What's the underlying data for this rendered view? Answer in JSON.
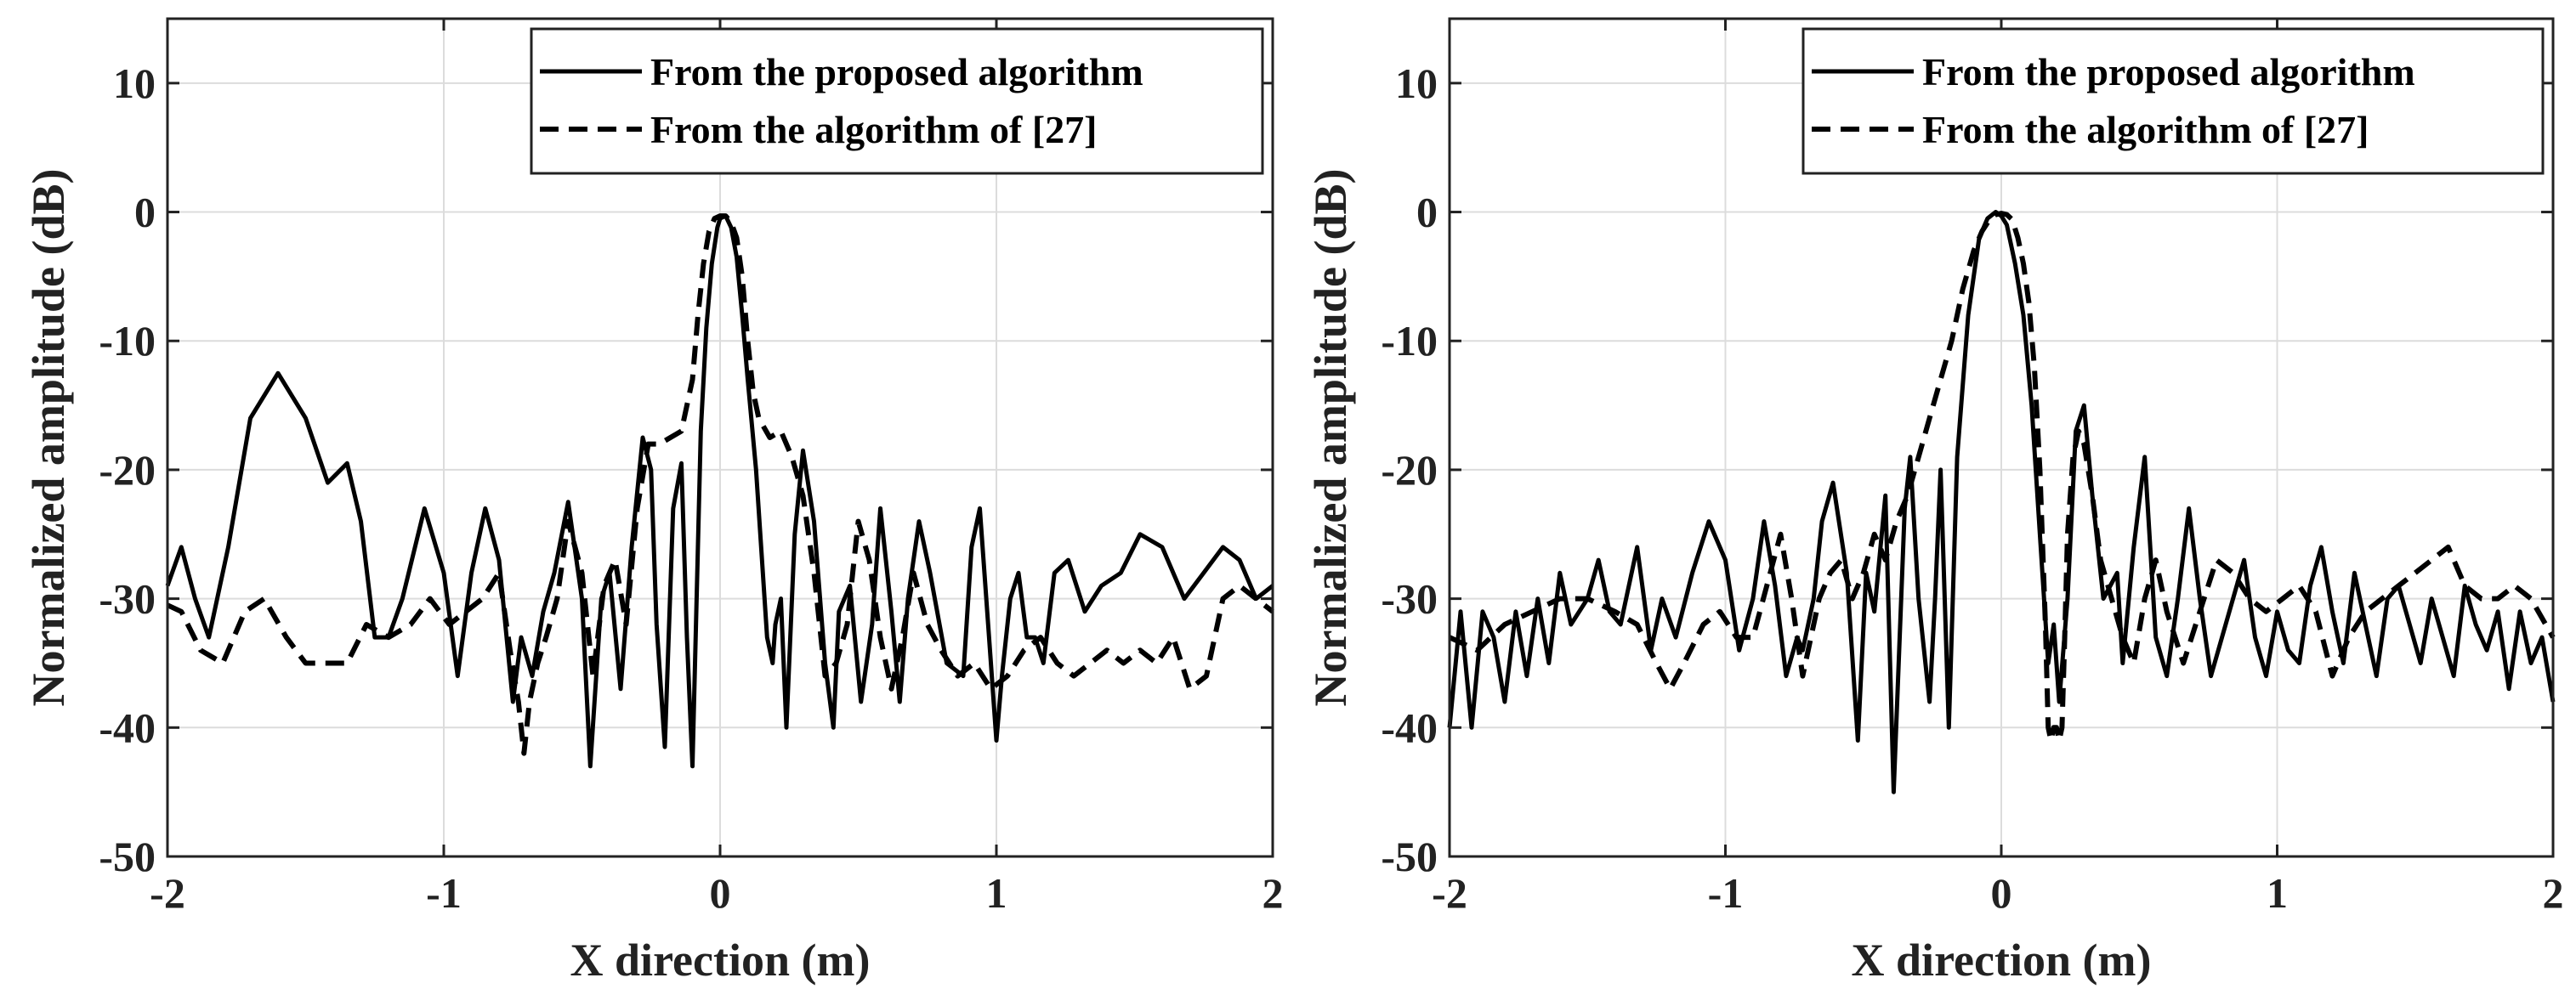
{
  "chart_data": [
    {
      "type": "line",
      "title": "",
      "xlabel": "X direction (m)",
      "ylabel": "Normalized amplitude (dB)",
      "xlim": [
        -2,
        2
      ],
      "ylim": [
        -50,
        15
      ],
      "xticks": [
        "-2",
        "-1",
        "0",
        "1",
        "2"
      ],
      "yticks": [
        "10",
        "0",
        "-10",
        "-20",
        "-30",
        "-40",
        "-50"
      ],
      "grid": true,
      "legend_position": "top-right",
      "series": [
        {
          "name": "From the proposed algorithm",
          "style": "solid",
          "x": [
            -2.0,
            -1.95,
            -1.9,
            -1.85,
            -1.78,
            -1.7,
            -1.6,
            -1.5,
            -1.42,
            -1.35,
            -1.3,
            -1.25,
            -1.2,
            -1.15,
            -1.07,
            -1.0,
            -0.95,
            -0.9,
            -0.85,
            -0.8,
            -0.75,
            -0.72,
            -0.68,
            -0.64,
            -0.6,
            -0.55,
            -0.5,
            -0.47,
            -0.43,
            -0.4,
            -0.36,
            -0.32,
            -0.28,
            -0.25,
            -0.23,
            -0.2,
            -0.17,
            -0.14,
            -0.12,
            -0.1,
            -0.07,
            -0.05,
            -0.03,
            -0.01,
            0.0,
            0.02,
            0.04,
            0.06,
            0.08,
            0.1,
            0.13,
            0.17,
            0.19,
            0.2,
            0.22,
            0.24,
            0.27,
            0.3,
            0.34,
            0.38,
            0.41,
            0.43,
            0.47,
            0.51,
            0.55,
            0.58,
            0.62,
            0.65,
            0.68,
            0.72,
            0.76,
            0.82,
            0.88,
            0.91,
            0.94,
            0.97,
            1.0,
            1.02,
            1.05,
            1.08,
            1.11,
            1.14,
            1.17,
            1.21,
            1.26,
            1.32,
            1.38,
            1.45,
            1.52,
            1.6,
            1.68,
            1.75,
            1.82,
            1.88,
            1.94,
            2.0
          ],
          "y": [
            -29,
            -26,
            -30,
            -33,
            -26,
            -16,
            -12.5,
            -16,
            -21,
            -19.5,
            -24,
            -33,
            -33,
            -30,
            -23,
            -28,
            -36,
            -28,
            -23,
            -27,
            -38,
            -33,
            -36,
            -31,
            -28,
            -22.5,
            -30,
            -43,
            -30,
            -28,
            -37,
            -26,
            -17.5,
            -20,
            -32,
            -41.5,
            -23,
            -19.5,
            -33,
            -43,
            -17,
            -9,
            -4,
            -1.2,
            -0.5,
            -0.3,
            -1.2,
            -3.5,
            -8,
            -13,
            -20,
            -33,
            -35,
            -32,
            -30,
            -40,
            -25,
            -18.5,
            -24,
            -35,
            -40,
            -31,
            -29,
            -38,
            -32,
            -23,
            -31,
            -38,
            -30,
            -24,
            -28,
            -35,
            -36,
            -26,
            -23,
            -32,
            -41,
            -36,
            -30,
            -28,
            -33,
            -33,
            -35,
            -28,
            -27,
            -31,
            -29,
            -28,
            -25,
            -26,
            -30,
            -28,
            -26,
            -27,
            -30,
            -29
          ]
        },
        {
          "name": "From the algorithm of [27]",
          "style": "dashed",
          "x": [
            -2.0,
            -1.95,
            -1.88,
            -1.8,
            -1.72,
            -1.65,
            -1.57,
            -1.5,
            -1.42,
            -1.35,
            -1.28,
            -1.2,
            -1.12,
            -1.05,
            -0.98,
            -0.92,
            -0.86,
            -0.8,
            -0.76,
            -0.73,
            -0.71,
            -0.69,
            -0.66,
            -0.63,
            -0.59,
            -0.55,
            -0.5,
            -0.46,
            -0.42,
            -0.38,
            -0.34,
            -0.3,
            -0.26,
            -0.22,
            -0.18,
            -0.14,
            -0.1,
            -0.08,
            -0.06,
            -0.04,
            -0.02,
            0.0,
            0.02,
            0.04,
            0.06,
            0.08,
            0.1,
            0.12,
            0.14,
            0.18,
            0.22,
            0.26,
            0.3,
            0.34,
            0.38,
            0.42,
            0.46,
            0.5,
            0.54,
            0.58,
            0.62,
            0.66,
            0.7,
            0.75,
            0.8,
            0.86,
            0.92,
            0.98,
            1.04,
            1.1,
            1.16,
            1.22,
            1.28,
            1.34,
            1.4,
            1.46,
            1.52,
            1.58,
            1.64,
            1.7,
            1.76,
            1.82,
            1.88,
            1.94,
            2.0
          ],
          "y": [
            -30.5,
            -31,
            -34,
            -35,
            -31,
            -30,
            -33,
            -35,
            -35,
            -35,
            -32,
            -33,
            -32,
            -30,
            -32,
            -31,
            -30,
            -28,
            -34,
            -38,
            -42,
            -38,
            -35,
            -33,
            -30,
            -24,
            -28,
            -36,
            -29,
            -27,
            -32,
            -23,
            -18,
            -18,
            -17.5,
            -17,
            -13,
            -8,
            -4,
            -1.5,
            -0.5,
            -0.3,
            -0.3,
            -0.8,
            -2,
            -5,
            -10,
            -14,
            -16,
            -17.5,
            -17,
            -19,
            -22,
            -28,
            -36,
            -35,
            -32,
            -24,
            -27,
            -33,
            -37,
            -33,
            -28,
            -32,
            -34,
            -36,
            -35,
            -37,
            -36,
            -34,
            -33,
            -35,
            -36,
            -35,
            -34,
            -35,
            -34,
            -35,
            -33,
            -37,
            -36,
            -30,
            -29,
            -30,
            -31
          ]
        }
      ]
    },
    {
      "type": "line",
      "title": "",
      "xlabel": "X direction (m)",
      "ylabel": "Normalized amplitude (dB)",
      "xlim": [
        -2,
        2
      ],
      "ylim": [
        -50,
        15
      ],
      "xticks": [
        "-2",
        "-1",
        "0",
        "1",
        "2"
      ],
      "yticks": [
        "10",
        "0",
        "-10",
        "-20",
        "-30",
        "-40",
        "-50"
      ],
      "grid": true,
      "legend_position": "top-right",
      "series": [
        {
          "name": "From the proposed algorithm",
          "style": "solid",
          "x": [
            -2.0,
            -1.96,
            -1.92,
            -1.88,
            -1.84,
            -1.8,
            -1.76,
            -1.72,
            -1.68,
            -1.64,
            -1.6,
            -1.56,
            -1.5,
            -1.46,
            -1.42,
            -1.38,
            -1.32,
            -1.27,
            -1.23,
            -1.18,
            -1.12,
            -1.06,
            -1.0,
            -0.95,
            -0.9,
            -0.86,
            -0.82,
            -0.78,
            -0.74,
            -0.72,
            -0.68,
            -0.65,
            -0.61,
            -0.56,
            -0.52,
            -0.49,
            -0.46,
            -0.42,
            -0.39,
            -0.37,
            -0.35,
            -0.33,
            -0.3,
            -0.26,
            -0.24,
            -0.22,
            -0.19,
            -0.16,
            -0.12,
            -0.08,
            -0.05,
            -0.02,
            0.0,
            0.02,
            0.05,
            0.08,
            0.11,
            0.14,
            0.17,
            0.19,
            0.21,
            0.24,
            0.27,
            0.3,
            0.33,
            0.37,
            0.42,
            0.44,
            0.48,
            0.52,
            0.56,
            0.6,
            0.64,
            0.68,
            0.72,
            0.76,
            0.8,
            0.84,
            0.88,
            0.92,
            0.96,
            1.0,
            1.04,
            1.08,
            1.12,
            1.16,
            1.2,
            1.24,
            1.28,
            1.32,
            1.36,
            1.4,
            1.44,
            1.48,
            1.52,
            1.56,
            1.6,
            1.64,
            1.68,
            1.72,
            1.76,
            1.8,
            1.84,
            1.88,
            1.92,
            1.96,
            2.0
          ],
          "y": [
            -40,
            -31,
            -40,
            -31,
            -33,
            -38,
            -31,
            -36,
            -30,
            -35,
            -28,
            -32,
            -30,
            -27,
            -31,
            -32,
            -26,
            -34,
            -30,
            -33,
            -28,
            -24,
            -27,
            -34,
            -30,
            -24,
            -29,
            -36,
            -33,
            -34,
            -30,
            -24,
            -21,
            -28,
            -41,
            -28,
            -31,
            -22,
            -45,
            -34,
            -23,
            -19,
            -30,
            -38,
            -30,
            -20,
            -40,
            -19,
            -8,
            -2,
            -0.5,
            0,
            -0.3,
            -1,
            -4,
            -8,
            -15,
            -25,
            -35,
            -32,
            -38,
            -30,
            -17,
            -15,
            -22,
            -30,
            -28,
            -35,
            -26,
            -19,
            -33,
            -36,
            -30,
            -23,
            -30,
            -36,
            -33,
            -30,
            -27,
            -33,
            -36,
            -31,
            -34,
            -35,
            -29,
            -26,
            -31,
            -35,
            -28,
            -32,
            -36,
            -30,
            -29,
            -32,
            -35,
            -30,
            -33,
            -36,
            -29,
            -32,
            -34,
            -31,
            -37,
            -31,
            -35,
            -33,
            -38
          ]
        },
        {
          "name": "From the algorithm of [27]",
          "style": "dashed",
          "x": [
            -2.0,
            -1.9,
            -1.8,
            -1.7,
            -1.6,
            -1.5,
            -1.4,
            -1.32,
            -1.25,
            -1.2,
            -1.15,
            -1.08,
            -1.02,
            -0.96,
            -0.9,
            -0.85,
            -0.8,
            -0.76,
            -0.72,
            -0.69,
            -0.66,
            -0.62,
            -0.58,
            -0.54,
            -0.5,
            -0.46,
            -0.42,
            -0.38,
            -0.34,
            -0.3,
            -0.26,
            -0.22,
            -0.18,
            -0.14,
            -0.1,
            -0.07,
            -0.04,
            -0.02,
            0.0,
            0.02,
            0.04,
            0.06,
            0.08,
            0.1,
            0.12,
            0.14,
            0.16,
            0.17,
            0.18,
            0.19,
            0.2,
            0.21,
            0.22,
            0.23,
            0.24,
            0.26,
            0.28,
            0.3,
            0.33,
            0.36,
            0.4,
            0.44,
            0.48,
            0.52,
            0.56,
            0.6,
            0.66,
            0.72,
            0.78,
            0.84,
            0.9,
            0.96,
            1.02,
            1.08,
            1.14,
            1.2,
            1.26,
            1.32,
            1.38,
            1.44,
            1.5,
            1.56,
            1.62,
            1.68,
            1.74,
            1.8,
            1.86,
            1.92,
            2.0
          ],
          "y": [
            -33,
            -34,
            -32,
            -31,
            -30,
            -30,
            -31,
            -32,
            -35,
            -37,
            -35,
            -32,
            -31,
            -33,
            -33,
            -29,
            -25,
            -30,
            -36,
            -33,
            -30,
            -28,
            -27,
            -30,
            -28,
            -25,
            -27,
            -24,
            -22,
            -19,
            -16,
            -13,
            -10,
            -6,
            -3,
            -1.5,
            -0.5,
            -0.2,
            -0.1,
            -0.2,
            -0.6,
            -2,
            -4,
            -7,
            -12,
            -20,
            -32,
            -40,
            -41,
            -40,
            -40,
            -41,
            -40,
            -33,
            -25,
            -19,
            -17,
            -18,
            -22,
            -27,
            -30,
            -33,
            -35,
            -30,
            -27,
            -31,
            -35,
            -31,
            -27,
            -28,
            -30,
            -31,
            -30,
            -29,
            -31,
            -36,
            -33,
            -31,
            -30,
            -29,
            -28,
            -27,
            -26,
            -29,
            -30,
            -30,
            -29,
            -30,
            -33
          ]
        }
      ]
    }
  ]
}
